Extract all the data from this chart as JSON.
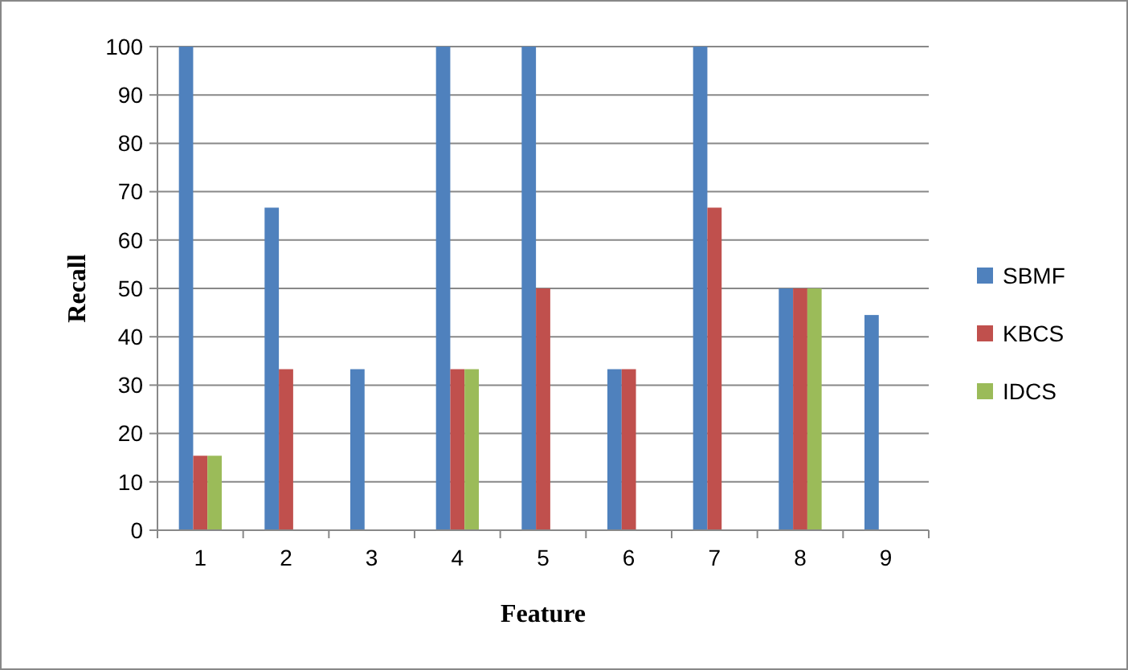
{
  "chart_data": {
    "type": "bar",
    "xlabel": "Feature",
    "ylabel": "Recall",
    "categories": [
      "1",
      "2",
      "3",
      "4",
      "5",
      "6",
      "7",
      "8",
      "9"
    ],
    "series": [
      {
        "name": "SBMF",
        "color": "#4f81bd",
        "values": [
          100,
          66.7,
          33.3,
          100,
          100,
          33.3,
          100,
          50,
          44.5
        ]
      },
      {
        "name": "KBCS",
        "color": "#c0504d",
        "values": [
          15.4,
          33.3,
          0,
          33.3,
          50,
          33.3,
          66.7,
          50,
          0
        ]
      },
      {
        "name": "IDCS",
        "color": "#9bbb59",
        "values": [
          15.4,
          0,
          0,
          33.3,
          0,
          0,
          0,
          50,
          0
        ]
      }
    ],
    "ylim": [
      0,
      100
    ],
    "yticks": [
      0,
      10,
      20,
      30,
      40,
      50,
      60,
      70,
      80,
      90,
      100
    ],
    "grid": "y",
    "legend": "right"
  }
}
